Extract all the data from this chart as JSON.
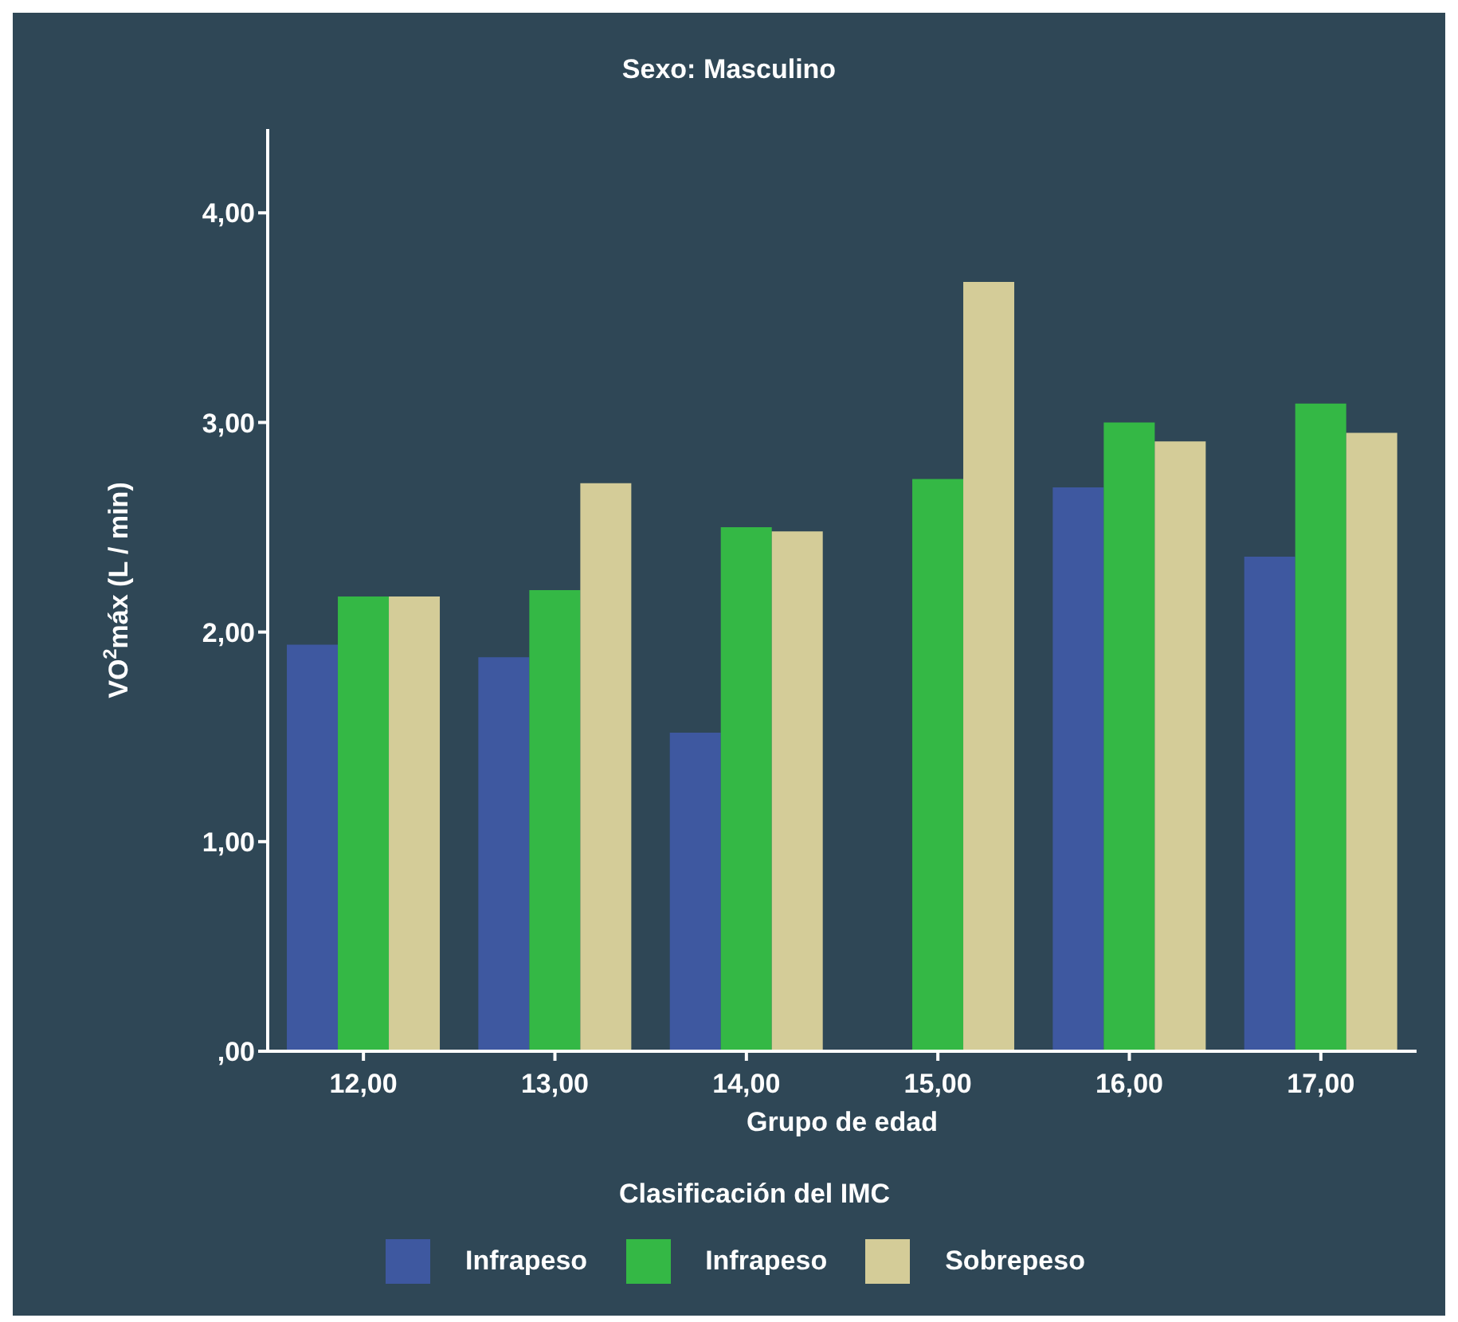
{
  "chart_data": {
    "type": "bar",
    "title": "Sexo: Masculino",
    "xlabel": "Grupo de edad",
    "ylabel": "VO$^{2}$máx (L / min)",
    "legend_title": "Clasificación del IMC",
    "categories": [
      "12,00",
      "13,00",
      "14,00",
      "15,00",
      "16,00",
      "17,00"
    ],
    "series": [
      {
        "name": "Infrapeso",
        "color": "#3e58a0",
        "values": [
          1.94,
          1.88,
          1.52,
          null,
          2.69,
          2.36
        ]
      },
      {
        "name": "Infrapeso",
        "color": "#34b845",
        "values": [
          2.17,
          2.2,
          2.5,
          2.73,
          3.0,
          3.09
        ]
      },
      {
        "name": "Sobrepeso",
        "color": "#d4cc98",
        "values": [
          2.17,
          2.71,
          2.48,
          3.67,
          2.91,
          2.95
        ]
      }
    ],
    "ylim": [
      0,
      4.4
    ],
    "yticks": [
      {
        "value": 0,
        "label": ",00"
      },
      {
        "value": 1,
        "label": "1,00"
      },
      {
        "value": 2,
        "label": "2,00"
      },
      {
        "value": 3,
        "label": "3,00"
      },
      {
        "value": 4,
        "label": "4,00"
      }
    ],
    "grid": false,
    "legend": "bottom"
  }
}
